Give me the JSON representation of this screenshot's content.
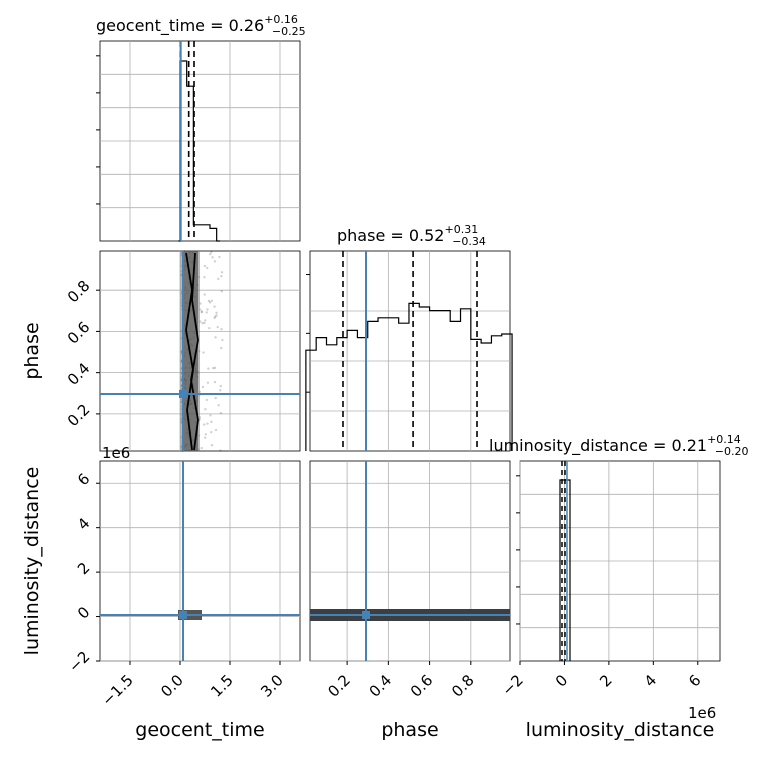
{
  "chart_data": {
    "type": "corner",
    "parameters": [
      "geocent_time",
      "phase",
      "luminosity_distance"
    ],
    "truths": {
      "geocent_time": 0.02,
      "phase": 0.28,
      "luminosity_distance": 0.0
    },
    "ranges": {
      "geocent_time": [
        -2.4,
        3.6
      ],
      "phase": [
        0.02,
        0.99
      ],
      "luminosity_distance": [
        -2.0,
        7.0
      ]
    },
    "offset_text": {
      "luminosity_distance": "1e6"
    },
    "diagonals": [
      {
        "param": "geocent_time",
        "title": "geocent_time = 0.26",
        "title_main": "geocent_time = 0.26",
        "title_sup": "+0.16",
        "title_sub": "−0.25",
        "quantiles": [
          0.01,
          0.26,
          0.42
        ],
        "hist_edges": [
          -0.05,
          0.0,
          0.1,
          0.2,
          0.3,
          0.4,
          0.5,
          0.6,
          0.7,
          0.8,
          0.9,
          1.0,
          1.1,
          1.2
        ],
        "hist_counts": [
          0,
          1.0,
          1.0,
          0.86,
          0.86,
          0.09,
          0.09,
          0.09,
          0.09,
          0.09,
          0.07,
          0.07,
          0.0
        ],
        "y_ticks": 6
      },
      {
        "param": "phase",
        "title": "phase = 0.52",
        "title_main": "phase = 0.52",
        "title_sup": "+0.31",
        "title_sub": "−0.34",
        "quantiles": [
          0.18,
          0.52,
          0.83
        ],
        "hist_edges": [
          0.0,
          0.05,
          0.1,
          0.15,
          0.2,
          0.25,
          0.3,
          0.35,
          0.4,
          0.45,
          0.5,
          0.55,
          0.6,
          0.65,
          0.7,
          0.75,
          0.8,
          0.85,
          0.9,
          0.95,
          1.0
        ],
        "hist_counts": [
          0.56,
          0.63,
          0.59,
          0.63,
          0.67,
          0.63,
          0.72,
          0.74,
          0.74,
          0.71,
          0.82,
          0.8,
          0.78,
          0.78,
          0.72,
          0.79,
          0.62,
          0.6,
          0.64,
          0.65
        ],
        "y_ticks": 3
      },
      {
        "param": "luminosity_distance",
        "title": "luminosity_distance = 0.21",
        "title_main": "luminosity_distance = 0.21",
        "title_sup": "+0.14",
        "title_sub": "−0.20",
        "quantiles": [
          0.01,
          0.21,
          0.35
        ],
        "hist_edges": [
          -0.2,
          0.0,
          0.3
        ],
        "hist_counts": [
          0.95,
          0.95
        ],
        "y_ticks": 6
      }
    ],
    "axis_labels": {
      "bottom": [
        "geocent_time",
        "phase",
        "luminosity_distance"
      ],
      "left": [
        "phase",
        "luminosity_distance"
      ]
    },
    "x_ticks": {
      "geocent_time": [
        "−1.5",
        "0.0",
        "1.5",
        "3.0"
      ],
      "phase": [
        "0.2",
        "0.4",
        "0.6",
        "0.8"
      ],
      "luminosity_distance": [
        "−2",
        "0",
        "2",
        "4",
        "6"
      ]
    },
    "x_tick_values": {
      "geocent_time": [
        -1.5,
        0.0,
        1.5,
        3.0
      ],
      "phase": [
        0.2,
        0.4,
        0.6,
        0.8
      ],
      "luminosity_distance": [
        -2,
        0,
        2,
        4,
        6
      ]
    },
    "y_ticks": {
      "phase": [
        "0.2",
        "0.4",
        "0.6",
        "0.8"
      ],
      "luminosity_distance": [
        "−2",
        "0",
        "2",
        "4",
        "6"
      ]
    },
    "y_tick_values": {
      "phase": [
        0.2,
        0.4,
        0.6,
        0.8
      ],
      "luminosity_distance": [
        -2,
        0,
        2,
        4,
        6
      ]
    },
    "colors": {
      "truth": "#4682b4",
      "hist": "#000000",
      "grid": "#b0b0b0"
    },
    "grid": true
  }
}
